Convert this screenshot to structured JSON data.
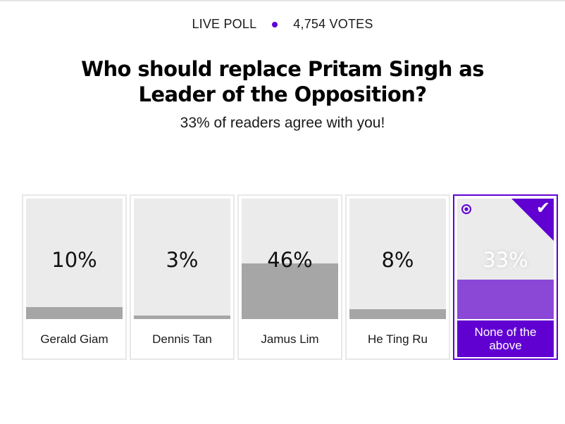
{
  "poll": {
    "tag": "LIVE POLL",
    "votes": "4,754 VOTES",
    "question": "Who should replace Pritam Singh as Leader of the Opposition?",
    "agree_text": "33% of readers agree with you!",
    "accent_color": "#6001d2",
    "options": [
      {
        "label": "Gerald Giam",
        "percent_text": "10%",
        "percent": 10,
        "selected": false
      },
      {
        "label": "Dennis Tan",
        "percent_text": "3%",
        "percent": 3,
        "selected": false
      },
      {
        "label": "Jamus Lim",
        "percent_text": "46%",
        "percent": 46,
        "selected": false
      },
      {
        "label": "He Ting Ru",
        "percent_text": "8%",
        "percent": 8,
        "selected": false
      },
      {
        "label": "None of the above",
        "percent_text": "33%",
        "percent": 33,
        "selected": true
      }
    ],
    "icons": {
      "selected_radio": "radio-selected-icon",
      "selected_check": "checkmark-icon"
    }
  }
}
